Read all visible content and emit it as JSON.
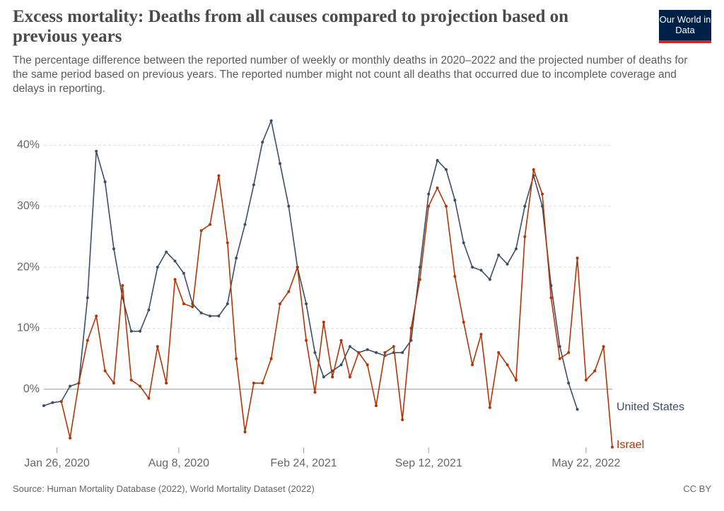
{
  "chart_data": {
    "type": "line",
    "title": "Excess mortality: Deaths from all causes compared to projection based on previous years",
    "subtitle": "The percentage difference between the reported number of weekly or monthly deaths in 2020–2022 and the projected number of deaths for the same period based on previous years. The reported number might not count all deaths that occurred due to incomplete coverage and delays in reporting.",
    "x": [
      "2020-01-05",
      "2020-01-19",
      "2020-02-02",
      "2020-02-16",
      "2020-03-01",
      "2020-03-15",
      "2020-03-29",
      "2020-04-12",
      "2020-04-26",
      "2020-05-10",
      "2020-05-24",
      "2020-06-07",
      "2020-06-21",
      "2020-07-05",
      "2020-07-19",
      "2020-08-02",
      "2020-08-16",
      "2020-08-30",
      "2020-09-13",
      "2020-09-27",
      "2020-10-11",
      "2020-10-25",
      "2020-11-08",
      "2020-11-22",
      "2020-12-06",
      "2020-12-20",
      "2021-01-03",
      "2021-01-17",
      "2021-01-31",
      "2021-02-14",
      "2021-02-28",
      "2021-03-14",
      "2021-03-28",
      "2021-04-11",
      "2021-04-25",
      "2021-05-09",
      "2021-05-23",
      "2021-06-06",
      "2021-06-20",
      "2021-07-04",
      "2021-07-18",
      "2021-08-01",
      "2021-08-15",
      "2021-08-29",
      "2021-09-12",
      "2021-09-26",
      "2021-10-10",
      "2021-10-24",
      "2021-11-07",
      "2021-11-21",
      "2021-12-05",
      "2021-12-19",
      "2022-01-02",
      "2022-01-16",
      "2022-01-30",
      "2022-02-13",
      "2022-02-27",
      "2022-03-13",
      "2022-03-27",
      "2022-04-10",
      "2022-04-24",
      "2022-05-08",
      "2022-05-22",
      "2022-06-05",
      "2022-06-19",
      "2022-07-03"
    ],
    "series": [
      {
        "name": "United States",
        "color": "#3c4e66",
        "values": [
          -2.7,
          -2.2,
          -2,
          0.5,
          1,
          15,
          39,
          34,
          23,
          15,
          9.5,
          9.5,
          13,
          20,
          22.5,
          21,
          19,
          14,
          12.5,
          12,
          12,
          14,
          21.5,
          27,
          33.5,
          40.5,
          44,
          37,
          30,
          20,
          14,
          6,
          2,
          3,
          4,
          7,
          6,
          6.5,
          6,
          5.5,
          6,
          6,
          8,
          20,
          32,
          37.5,
          36,
          31,
          24,
          20,
          19.5,
          18,
          22,
          20.5,
          23,
          30,
          35,
          30,
          17,
          7,
          1,
          -3.3,
          null,
          null,
          null,
          null
        ]
      },
      {
        "name": "Israel",
        "color": "#b13507",
        "values": [
          null,
          null,
          -2,
          -8,
          1,
          8,
          12,
          3,
          1,
          17,
          1.5,
          0.5,
          -1.5,
          7,
          1,
          18,
          14,
          13.5,
          26,
          27,
          35,
          24,
          5,
          -7,
          1,
          1,
          5,
          14,
          16,
          20,
          8,
          -0.5,
          11,
          2,
          8,
          2,
          6,
          4,
          -2.7,
          6,
          7,
          -5,
          10,
          18,
          30,
          33,
          30,
          18.5,
          11,
          4,
          9,
          -3,
          6,
          4,
          1.5,
          25,
          36,
          32,
          15,
          5,
          6,
          21.5,
          1.5,
          3,
          7,
          -9.5
        ]
      }
    ],
    "xlim": [
      "2020-01-05",
      "2022-07-03"
    ],
    "xticks": [
      {
        "value": "2020-01-26",
        "label": "Jan 26, 2020"
      },
      {
        "value": "2020-08-08",
        "label": "Aug 8, 2020"
      },
      {
        "value": "2021-02-24",
        "label": "Feb 24, 2021"
      },
      {
        "value": "2021-09-12",
        "label": "Sep 12, 2021"
      },
      {
        "value": "2022-05-22",
        "label": "May 22, 2022"
      }
    ],
    "ylim": [
      -10,
      47
    ],
    "yticks": [
      {
        "value": 0,
        "label": "0%"
      },
      {
        "value": 10,
        "label": "10%"
      },
      {
        "value": 20,
        "label": "20%"
      },
      {
        "value": 30,
        "label": "30%"
      },
      {
        "value": 40,
        "label": "40%"
      }
    ],
    "grid": true
  },
  "source": "Source: Human Mortality Database (2022), World Mortality Dataset (2022)",
  "license": "CC BY",
  "logo": "Our World in Data"
}
